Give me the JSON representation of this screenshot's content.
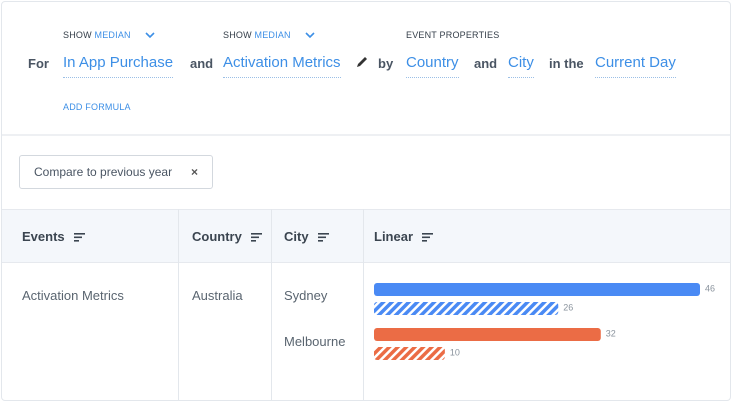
{
  "query": {
    "for": "For",
    "event1": {
      "show": "SHOW",
      "aggregate": "MEDIAN",
      "name": "In App Purchase"
    },
    "and1": "and",
    "event2": {
      "show": "SHOW",
      "aggregate": "MEDIAN",
      "name": "Activation Metrics"
    },
    "by": "by",
    "properties_label": "EVENT PROPERTIES",
    "property1": "Country",
    "and2": "and",
    "property2": "City",
    "in_the": "in the",
    "time": "Current Day",
    "add_formula": "ADD FORMULA"
  },
  "compare": "Compare to previous year",
  "table": {
    "columns": [
      "Events",
      "Country",
      "City",
      "Linear"
    ],
    "rows": [
      {
        "event": "Activation Metrics",
        "country": "Australia",
        "cities": [
          {
            "name": "Sydney",
            "current": 46,
            "previous": 26
          },
          {
            "name": "Melbourne",
            "current": 32,
            "previous": 10
          }
        ]
      }
    ]
  }
}
